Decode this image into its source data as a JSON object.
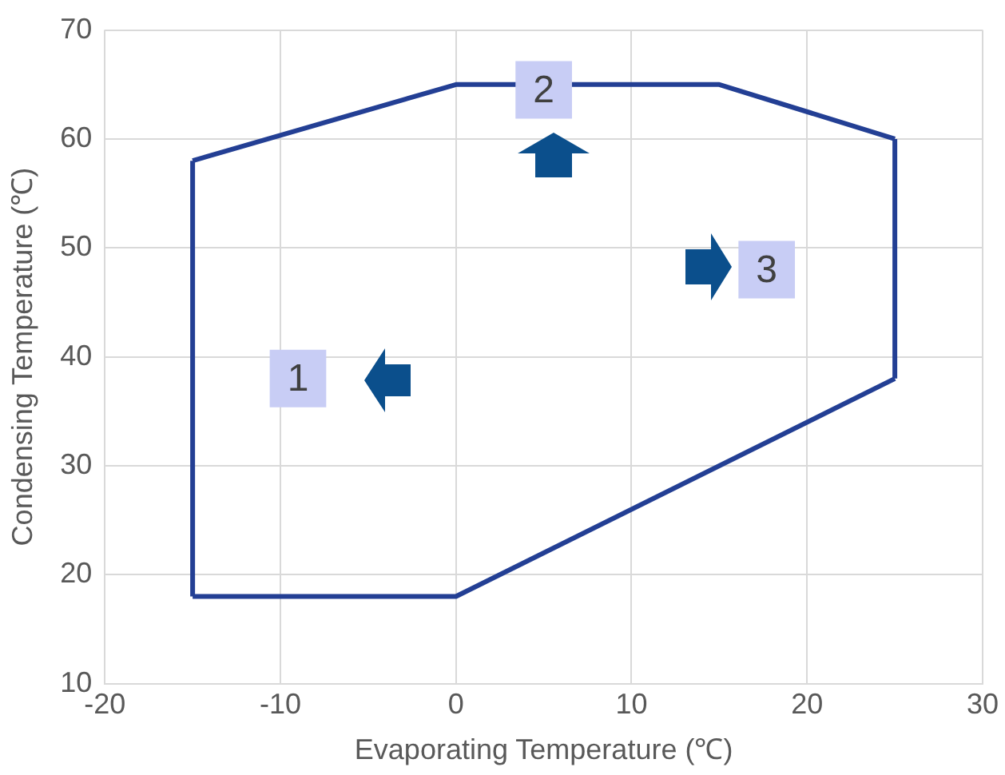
{
  "chart_data": {
    "type": "line",
    "xlabel": "Evaporating Temperature (℃)",
    "ylabel": "Condensing Temperature (℃)",
    "series": [
      {
        "color": "#233f94",
        "x": [
          -15,
          0,
          15,
          25
        ],
        "values": [
          58,
          65,
          65,
          60
        ]
      },
      {
        "color": "#233f94",
        "x": [
          -15,
          0,
          25
        ],
        "values": [
          18,
          18,
          38
        ]
      },
      {
        "color": "#233f94",
        "x": [
          -15,
          -15
        ],
        "values": [
          18,
          58
        ]
      },
      {
        "color": "#233f94",
        "x": [
          25,
          25
        ],
        "values": [
          38,
          60
        ]
      }
    ],
    "xlim": [
      -20,
      30
    ],
    "xticks": [
      -20,
      -10,
      0,
      10,
      20,
      30
    ],
    "ylim": [
      10,
      70
    ],
    "yticks": [
      10,
      20,
      30,
      40,
      50,
      60,
      70
    ],
    "grid": true,
    "legend": false,
    "marker": "none",
    "line_style": "solid",
    "annotations": [
      {
        "text": "1",
        "x": -9,
        "y": 38
      },
      {
        "text": "2",
        "x": 5,
        "y": 64.5
      },
      {
        "text": "3",
        "x": 17.7,
        "y": 48
      }
    ]
  }
}
